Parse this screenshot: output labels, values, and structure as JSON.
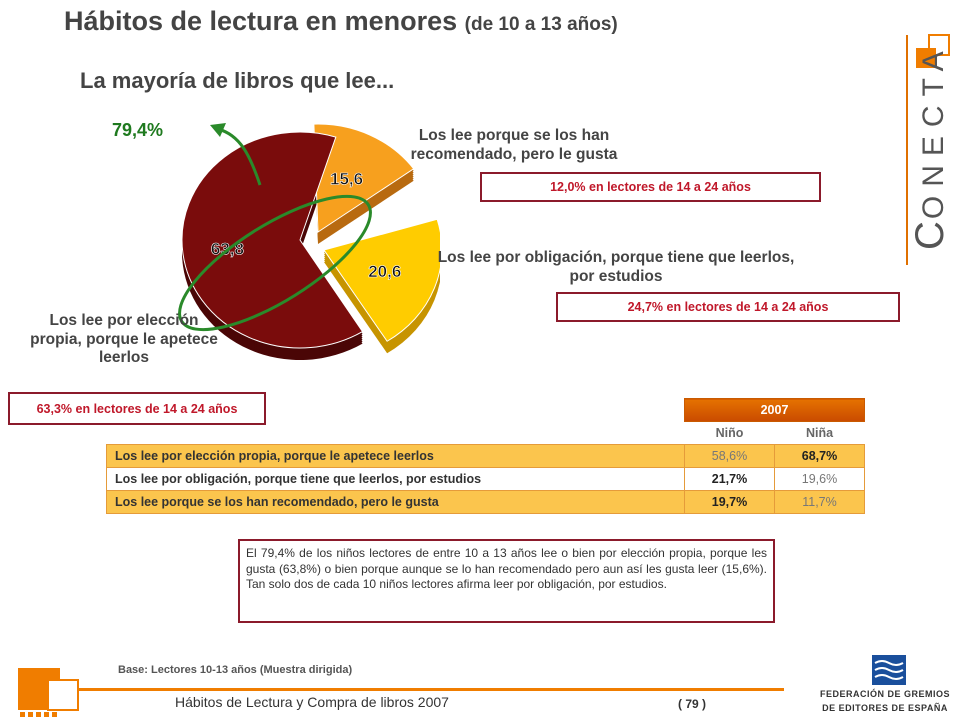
{
  "header": {
    "title": "Hábitos de lectura en menores",
    "title_suffix": "(de 10 a 13 años)",
    "subtitle": "La mayoría de libros que lee..."
  },
  "brand": {
    "initial": "C",
    "rest": "ONECTA",
    "icon": "conecta-squares-logo",
    "color": "#f07d00"
  },
  "chart_data": {
    "type": "pie",
    "slices": [
      {
        "label": "Los lee porque se los han recomendado, pero le gusta",
        "value": 15.6,
        "color": "#f7a01e"
      },
      {
        "label": "Los lee por obligación, porque tiene que leerlos, por estudios",
        "value": 20.6,
        "color": "#ffcc00"
      },
      {
        "label": "Los lee por elección propia, porque le apetece leerlos",
        "value": 63.8,
        "color": "#7a0c0c"
      }
    ],
    "annotation": "79,4%",
    "annotation_color": "#1f7a1f"
  },
  "slice_labels": {
    "recomendado": "Los lee porque se los han recomendado, pero le gusta",
    "obligacion": "Los lee por obligación, porque tiene que leerlos, por estudios",
    "eleccion": "Los lee por elección propia, porque le apetece leerlos"
  },
  "comparisons": {
    "recomendado": "12,0% en lectores de 14 a 24 años",
    "obligacion": "24,7% en lectores de 14 a 24 años",
    "eleccion": "63,3% en lectores de 14 a 24 años"
  },
  "table": {
    "year": "2007",
    "columns": [
      "Niño",
      "Niña"
    ],
    "rows": [
      {
        "label": "Los lee por elección propia, porque le apetece leerlos",
        "nino": "58,6%",
        "nina": "68,7%"
      },
      {
        "label": "Los lee por obligación, porque tiene que leerlos, por estudios",
        "nino": "21,7%",
        "nina": "19,6%"
      },
      {
        "label": "Los lee porque se los han recomendado, pero le gusta",
        "nino": "19,7%",
        "nina": "11,7%"
      }
    ]
  },
  "comment": "El 79,4% de los niños lectores de entre 10 a 13 años lee o bien por elección propia, porque les gusta (63,8%) o bien porque aunque se lo han recomendado pero aun así les gusta leer (15,6%). Tan solo dos de cada 10 niños lectores afirma leer por obligación, por estudios.",
  "footer": {
    "base": "Base: Lectores 10-13 años (Muestra dirigida)",
    "report": "Hábitos de Lectura y Compra de libros 2007",
    "page": "( 79 )",
    "federation_line1": "FEDERACIÓN DE GREMIOS",
    "federation_line2": "DE EDITORES DE ESPAÑA",
    "federation_icon": "federacion-gremios-logo",
    "corner_icon": "orange-squares-logo"
  }
}
